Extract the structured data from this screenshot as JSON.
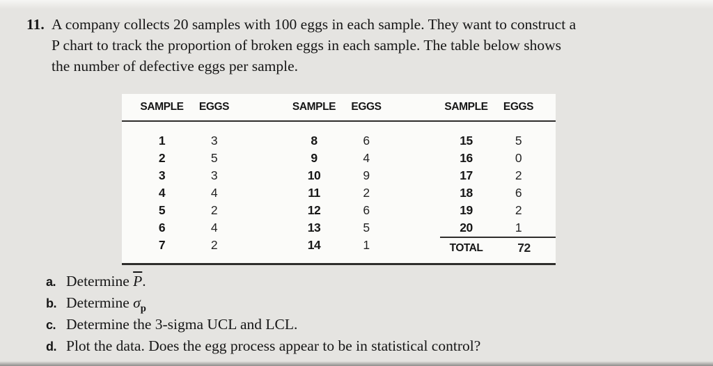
{
  "problem": {
    "number": "11.",
    "lines": [
      "A company collects 20 samples with 100 eggs in each sample. They want to construct a",
      "P chart to track the proportion of broken eggs in each sample. The table below shows",
      "the number of defective eggs per sample."
    ]
  },
  "table": {
    "header": {
      "sample": "SAMPLE",
      "eggs": "EGGS"
    },
    "groups": [
      {
        "rows": [
          {
            "sample": "1",
            "eggs": "3"
          },
          {
            "sample": "2",
            "eggs": "5"
          },
          {
            "sample": "3",
            "eggs": "3"
          },
          {
            "sample": "4",
            "eggs": "4"
          },
          {
            "sample": "5",
            "eggs": "2"
          },
          {
            "sample": "6",
            "eggs": "4"
          },
          {
            "sample": "7",
            "eggs": "2"
          }
        ]
      },
      {
        "rows": [
          {
            "sample": "8",
            "eggs": "6"
          },
          {
            "sample": "9",
            "eggs": "4"
          },
          {
            "sample": "10",
            "eggs": "9"
          },
          {
            "sample": "11",
            "eggs": "2"
          },
          {
            "sample": "12",
            "eggs": "6"
          },
          {
            "sample": "13",
            "eggs": "5"
          },
          {
            "sample": "14",
            "eggs": "1"
          }
        ]
      },
      {
        "rows": [
          {
            "sample": "15",
            "eggs": "5"
          },
          {
            "sample": "16",
            "eggs": "0"
          },
          {
            "sample": "17",
            "eggs": "2"
          },
          {
            "sample": "18",
            "eggs": "6"
          },
          {
            "sample": "19",
            "eggs": "2"
          },
          {
            "sample": "20",
            "eggs": "1"
          }
        ],
        "total": {
          "label": "TOTAL",
          "value": "72"
        }
      }
    ]
  },
  "questions": [
    {
      "letter": "a.",
      "pre": "Determine ",
      "symbol": "P",
      "symbol_type": "pbar",
      "post": "."
    },
    {
      "letter": "b.",
      "pre": "Determine ",
      "symbol": "σ",
      "symbol_type": "sigma",
      "sub": "p",
      "post": ""
    },
    {
      "letter": "c.",
      "text": "Determine the 3-sigma UCL and LCL."
    },
    {
      "letter": "d.",
      "text": "Plot the data. Does the egg process appear to be in statistical control?"
    }
  ],
  "colors": {
    "page_bg": "#e5e4e1",
    "table_bg": "#fbfbf9",
    "rule": "#2e2d2b",
    "text": "#161616"
  }
}
